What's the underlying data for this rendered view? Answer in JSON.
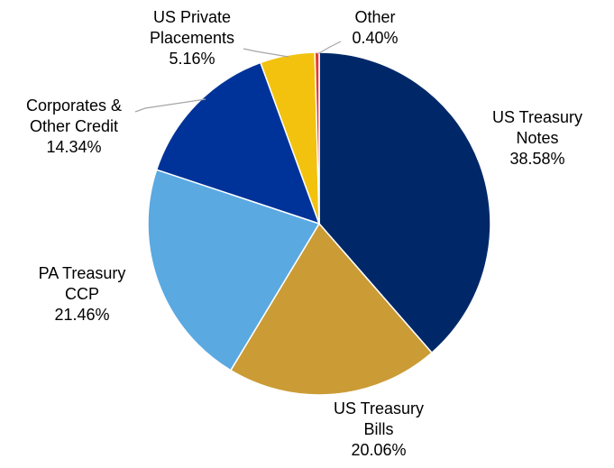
{
  "chart_data": {
    "type": "pie",
    "title": "",
    "slices": [
      {
        "label_lines": [
          "US Treasury",
          "Notes"
        ],
        "value": 38.58,
        "value_label": "38.58%",
        "color": "#002868"
      },
      {
        "label_lines": [
          "US Treasury",
          "Bills"
        ],
        "value": 20.06,
        "value_label": "20.06%",
        "color": "#CB9B35"
      },
      {
        "label_lines": [
          "PA Treasury",
          "CCP"
        ],
        "value": 21.46,
        "value_label": "21.46%",
        "color": "#5AA9E1"
      },
      {
        "label_lines": [
          "Corporates &",
          "Other Credit"
        ],
        "value": 14.34,
        "value_label": "14.34%",
        "color": "#003399"
      },
      {
        "label_lines": [
          "US Private",
          "Placements"
        ],
        "value": 5.16,
        "value_label": "5.16%",
        "color": "#F2C20F"
      },
      {
        "label_lines": [
          "Other"
        ],
        "value": 0.4,
        "value_label": "0.40%",
        "color": "#E53935"
      }
    ],
    "start_position": "top",
    "direction": "clockwise",
    "legend": "none",
    "label_style": "outside labels with category name and percentage"
  }
}
